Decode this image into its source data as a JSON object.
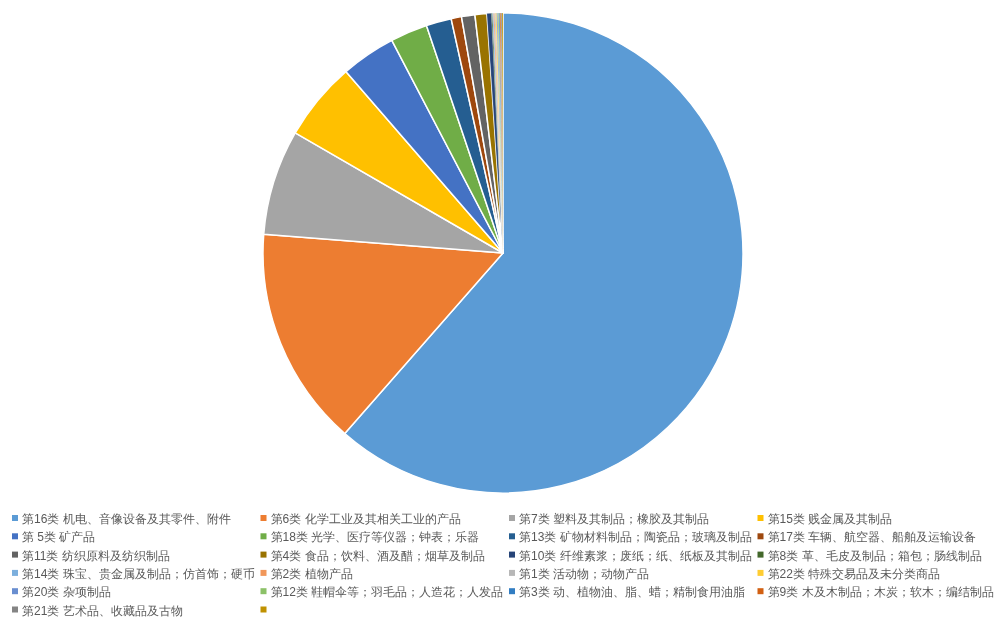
{
  "chart_data": {
    "type": "pie",
    "legend": "bottom",
    "categories": [
      "第16类 机电、音像设备及其零件、附件",
      "第6类 化学工业及其相关工业的产品",
      "第7类 塑料及其制品；橡胶及其制品",
      "第15类 贱金属及其制品",
      "第 5类 矿产品",
      "第18类 光学、医疗等仪器；钟表；乐器",
      "第13类 矿物材料制品；陶瓷品；玻璃及制品",
      "第17类 车辆、航空器、船舶及运输设备",
      "第11类 纺织原料及纺织制品",
      "第4类 食品；饮料、酒及醋；烟草及制品",
      "第10类 纤维素浆；废纸；纸、纸板及其制品",
      "第8类 革、毛皮及制品；箱包；肠线制品",
      "第14类 珠宝、贵金属及制品；仿首饰；硬币",
      "第2类 植物产品",
      "第1类 活动物；动物产品",
      "第22类 特殊交易品及未分类商品",
      "第20类 杂项制品",
      "第12类 鞋帽伞等；羽毛品；人造花；人发品",
      "第3类 动、植物油、脂、蜡；精制食用油脂",
      "第9类 木及木制品；木炭；软木；编结制品",
      "第21类 艺术品、收藏品及古物",
      null
    ],
    "values": [
      61.5,
      14.8,
      7.1,
      5.3,
      3.7,
      2.5,
      1.7,
      0.7,
      0.9,
      0.8,
      0.3,
      0.07,
      0.07,
      0.07,
      0.07,
      0.07,
      0.07,
      0.07,
      0.07,
      0.07,
      0.07,
      0.07
    ],
    "colors": [
      "#5b9bd5",
      "#ed7d31",
      "#a5a5a5",
      "#ffc000",
      "#4472c4",
      "#70ad47",
      "#255e91",
      "#9e480e",
      "#636363",
      "#997300",
      "#264478",
      "#43682b",
      "#7cafdd",
      "#f1975a",
      "#b7b7b7",
      "#ffcd33",
      "#698ed0",
      "#8cc168",
      "#327dc2",
      "#d26012",
      "#848484",
      "#c09100"
    ]
  }
}
